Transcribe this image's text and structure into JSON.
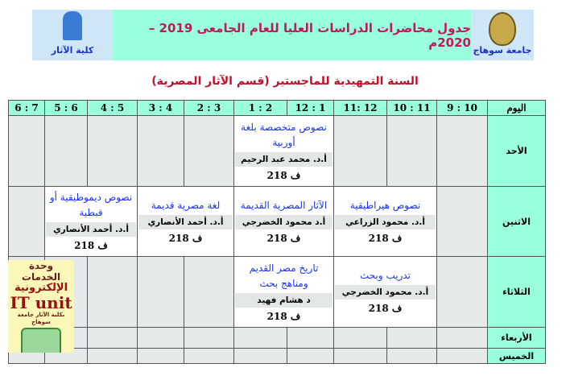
{
  "header": {
    "faculty": "كلية الآثار",
    "title": "جدول محاضرات الدراسات العليا للعام الجامعى 2019 – 2020م",
    "university": "جامعة سوهاج"
  },
  "subtitle": "السنة التمهيدية للماجستير (قسم الآثار المصرية)",
  "columns": [
    "اليوم",
    "10 : 9",
    "11 : 10",
    "12 :11",
    "1 : 12",
    "2 : 1",
    "3 : 2",
    "4 : 3",
    "5 : 4",
    "6 : 5",
    "7 : 6"
  ],
  "days": [
    "الأحد",
    "الاثنين",
    "الثلاثاء",
    "الأربعاء",
    "الخميس"
  ],
  "classes": {
    "sun": {
      "subject": "نصوص متخصصة بلغة أوربية",
      "teacher": "أ.د. محمد عبد الرحيم",
      "room": "ف 218"
    },
    "mon1": {
      "subject": "نصوص هيراطيقية",
      "teacher": "أ.د. محمود الزراعي",
      "room": "ف 218"
    },
    "mon2": {
      "subject": "الآثار المصرية القديمة",
      "teacher": "أ.د محمود الخضرجي",
      "room": "ف 218"
    },
    "mon3": {
      "subject": "لغة مصرية قديمة",
      "teacher": "أ.د. أحمد الأنصاري",
      "room": "ف 218"
    },
    "mon4": {
      "subject": "نصوص ديموطيقية أو قبطية",
      "teacher": "أ.د. أحمد الأنصاري",
      "room": "ف 218"
    },
    "tue1": {
      "subject": "تدريب وبحث",
      "teacher": "أ.د. محمود الخضرجي",
      "room": "ف 218"
    },
    "tue2": {
      "subject": "تاريخ مصر القديم ومناهج بحث",
      "teacher": "د هشام فهيد",
      "room": "ف 218"
    }
  },
  "it_unit": {
    "line1": "وحدة الخدمات",
    "line2": "الإلكترونية",
    "line3": "IT unit",
    "line4": "بكلية الآثار جامعة سوهاج"
  }
}
